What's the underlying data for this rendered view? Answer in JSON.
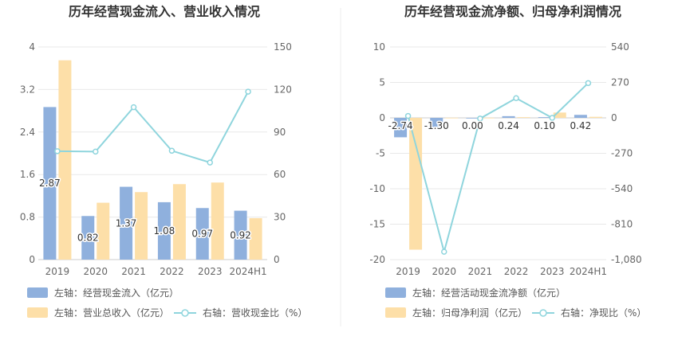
{
  "chart_data": [
    {
      "type": "bar",
      "title": "历年经营现金流入、营业收入情况",
      "categories": [
        "2019",
        "2020",
        "2021",
        "2022",
        "2023",
        "2024H1"
      ],
      "left_axis": {
        "ticks": [
          "0",
          "0.8",
          "1.6",
          "2.4",
          "3.2",
          "4"
        ],
        "ylim": [
          0,
          4
        ]
      },
      "right_axis": {
        "ticks": [
          "0",
          "30",
          "60",
          "90",
          "120",
          "150"
        ],
        "ylim": [
          0,
          150
        ]
      },
      "series": [
        {
          "name": "左轴：经营现金流入（亿元）",
          "axis": "left",
          "kind": "bar",
          "color": "#8fb0dd",
          "values": [
            2.87,
            0.82,
            1.37,
            1.08,
            0.97,
            0.92
          ],
          "labels": [
            "2.87",
            "0.82",
            "1.37",
            "1.08",
            "0.97",
            "0.92"
          ]
        },
        {
          "name": "左轴：营业总收入（亿元）",
          "axis": "left",
          "kind": "bar",
          "color": "#fddfa8",
          "values": [
            3.75,
            1.07,
            1.27,
            1.42,
            1.45,
            0.78
          ]
        },
        {
          "name": "右轴：营收现金比（%）",
          "axis": "right",
          "kind": "line",
          "color": "#8fd5dd",
          "values": [
            76.5,
            76.2,
            107.5,
            76.8,
            68.5,
            118.5
          ]
        }
      ]
    },
    {
      "type": "bar",
      "title": "历年经营现金流净额、归母净利润情况",
      "categories": [
        "2019",
        "2020",
        "2021",
        "2022",
        "2023",
        "2024H1"
      ],
      "left_axis": {
        "ticks": [
          "-20",
          "-15",
          "-10",
          "-5",
          "0",
          "5",
          "10"
        ],
        "ylim": [
          -20,
          10
        ]
      },
      "right_axis": {
        "ticks": [
          "-1,080",
          "-810",
          "-540",
          "-270",
          "0",
          "270",
          "540"
        ],
        "ylim": [
          -1080,
          540
        ]
      },
      "series": [
        {
          "name": "左轴：经营活动现金流净额（亿元）",
          "axis": "left",
          "kind": "bar",
          "color": "#8fb0dd",
          "values": [
            -2.74,
            -1.3,
            0.0,
            0.24,
            0.1,
            0.42
          ],
          "labels": [
            "-2.74",
            "-1.30",
            "0.00",
            "0.24",
            "0.10",
            "0.42"
          ]
        },
        {
          "name": "左轴：归母净利润（亿元）",
          "axis": "left",
          "kind": "bar",
          "color": "#fddfa8",
          "values": [
            -18.6,
            0.02,
            0.02,
            0.1,
            0.75,
            0.15
          ]
        },
        {
          "name": "右轴：净现比（%）",
          "axis": "right",
          "kind": "line",
          "color": "#8fd5dd",
          "values": [
            14.7,
            -1020,
            -5,
            150,
            0,
            265
          ]
        }
      ]
    }
  ]
}
